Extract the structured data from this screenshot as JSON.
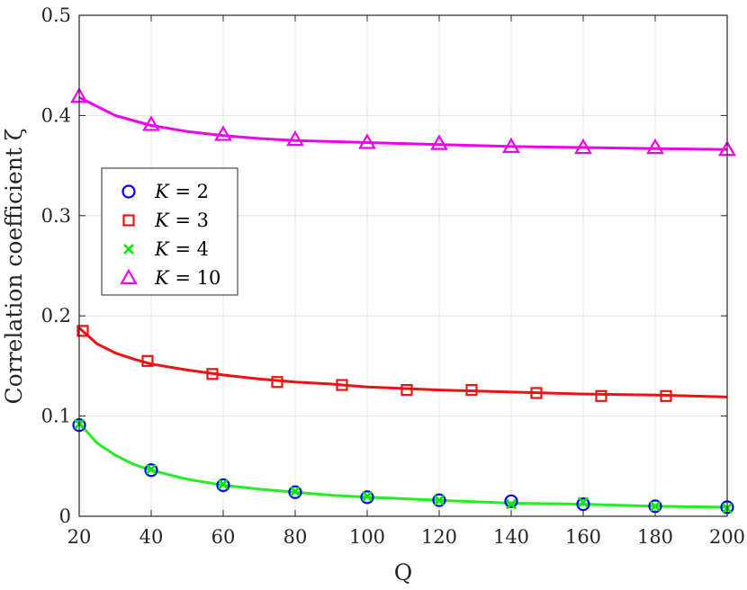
{
  "chart_data": {
    "type": "line",
    "xlabel": "Q",
    "ylabel": "Correlation coefficient ζ",
    "xlim": [
      20,
      200
    ],
    "ylim": [
      0,
      0.5
    ],
    "xticks": [
      20,
      40,
      60,
      80,
      100,
      120,
      140,
      160,
      180,
      200
    ],
    "yticks": [
      0,
      0.1,
      0.2,
      0.3,
      0.4,
      0.5
    ],
    "xtick_labels": [
      "20",
      "40",
      "60",
      "80",
      "100",
      "120",
      "140",
      "160",
      "180",
      "200"
    ],
    "ytick_labels": [
      "0",
      "0.1",
      "0.2",
      "0.3",
      "0.4",
      "0.5"
    ],
    "grid": true,
    "legend_position": "left",
    "series": [
      {
        "name": "K = 2",
        "legend_var": "K",
        "legend_val": "2",
        "marker": "circle",
        "color": "#0000ff",
        "points": [
          [
            20,
            0.091
          ],
          [
            40,
            0.046
          ],
          [
            60,
            0.031
          ],
          [
            80,
            0.024
          ],
          [
            100,
            0.019
          ],
          [
            120,
            0.016
          ],
          [
            140,
            0.015
          ],
          [
            160,
            0.012
          ],
          [
            180,
            0.01
          ],
          [
            200,
            0.009
          ]
        ]
      },
      {
        "name": "K = 3",
        "legend_var": "K",
        "legend_val": "3",
        "marker": "square",
        "color": "#ee1111",
        "line_color": "#ee1111",
        "points": [
          [
            21,
            0.185
          ],
          [
            39,
            0.155
          ],
          [
            57,
            0.142
          ],
          [
            75,
            0.134
          ],
          [
            93,
            0.131
          ],
          [
            111,
            0.126
          ],
          [
            129,
            0.126
          ],
          [
            147,
            0.123
          ],
          [
            165,
            0.12
          ],
          [
            183,
            0.12
          ]
        ],
        "curve": [
          [
            20,
            0.188
          ],
          [
            25,
            0.172
          ],
          [
            30,
            0.163
          ],
          [
            35,
            0.157
          ],
          [
            40,
            0.152
          ],
          [
            50,
            0.146
          ],
          [
            60,
            0.141
          ],
          [
            70,
            0.137
          ],
          [
            80,
            0.134
          ],
          [
            90,
            0.132
          ],
          [
            100,
            0.129
          ],
          [
            120,
            0.126
          ],
          [
            140,
            0.124
          ],
          [
            160,
            0.122
          ],
          [
            180,
            0.121
          ],
          [
            200,
            0.119
          ]
        ]
      },
      {
        "name": "K = 4",
        "legend_var": "K",
        "legend_val": "4",
        "marker": "x",
        "color": "#00e600",
        "line_color": "#22ee22",
        "points": [
          [
            20,
            0.092
          ],
          [
            40,
            0.047
          ],
          [
            60,
            0.032
          ],
          [
            80,
            0.025
          ],
          [
            100,
            0.02
          ],
          [
            120,
            0.016
          ],
          [
            140,
            0.012
          ],
          [
            160,
            0.014
          ],
          [
            180,
            0.01
          ],
          [
            200,
            0.008
          ]
        ],
        "curve": [
          [
            20,
            0.093
          ],
          [
            25,
            0.073
          ],
          [
            30,
            0.061
          ],
          [
            35,
            0.052
          ],
          [
            40,
            0.046
          ],
          [
            50,
            0.037
          ],
          [
            60,
            0.031
          ],
          [
            70,
            0.027
          ],
          [
            80,
            0.024
          ],
          [
            90,
            0.021
          ],
          [
            100,
            0.019
          ],
          [
            120,
            0.016
          ],
          [
            140,
            0.013
          ],
          [
            160,
            0.012
          ],
          [
            180,
            0.01
          ],
          [
            200,
            0.009
          ]
        ]
      },
      {
        "name": "K = 10",
        "legend_var": "K",
        "legend_val": "10",
        "marker": "triangle",
        "color": "#ee00ee",
        "line_color": "#ee00ee",
        "points": [
          [
            20,
            0.419
          ],
          [
            40,
            0.391
          ],
          [
            60,
            0.381
          ],
          [
            80,
            0.376
          ],
          [
            100,
            0.373
          ],
          [
            120,
            0.372
          ],
          [
            140,
            0.369
          ],
          [
            160,
            0.368
          ],
          [
            180,
            0.368
          ],
          [
            200,
            0.366
          ]
        ],
        "curve": [
          [
            20,
            0.418
          ],
          [
            30,
            0.4
          ],
          [
            40,
            0.39
          ],
          [
            50,
            0.384
          ],
          [
            60,
            0.38
          ],
          [
            70,
            0.377
          ],
          [
            80,
            0.375
          ],
          [
            100,
            0.373
          ],
          [
            120,
            0.371
          ],
          [
            140,
            0.369
          ],
          [
            160,
            0.368
          ],
          [
            180,
            0.367
          ],
          [
            200,
            0.366
          ]
        ]
      }
    ]
  }
}
